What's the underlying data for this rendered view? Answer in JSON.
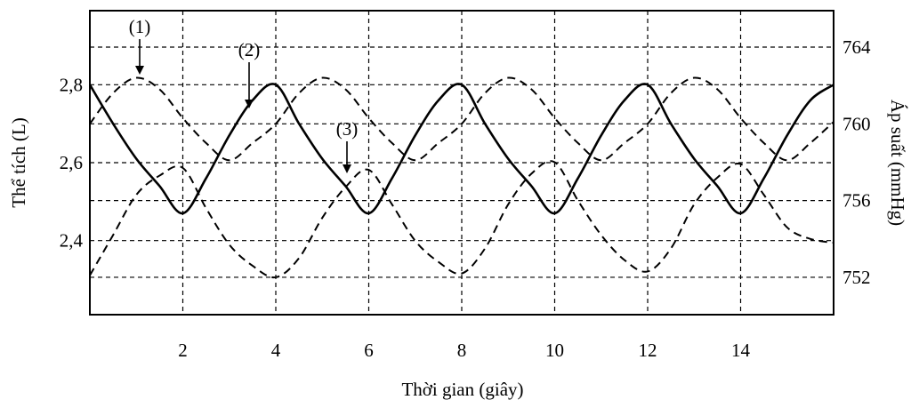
{
  "chart_data": {
    "type": "line",
    "x_label": "Thời gian (giây)",
    "y_label": "Thể tích (L)",
    "y2_label": "Áp suất (mmHg)",
    "x": [
      0,
      0.5,
      1,
      1.5,
      2,
      2.5,
      3,
      3.5,
      4,
      4.5,
      5,
      5.5,
      6,
      6.5,
      7,
      7.5,
      8,
      8.5,
      9,
      9.5,
      10,
      10.5,
      11,
      11.5,
      12,
      12.5,
      13,
      13.5,
      14,
      14.5,
      15,
      15.5,
      16
    ],
    "xlim": [
      0,
      16
    ],
    "xticks": [
      2,
      4,
      6,
      8,
      10,
      12,
      14
    ],
    "ylim": [
      2.21,
      2.99
    ],
    "yticks": [
      {
        "value": 2.4,
        "label": "2,4"
      },
      {
        "value": 2.6,
        "label": "2,6"
      },
      {
        "value": 2.8,
        "label": "2,8"
      }
    ],
    "y2lim": [
      750.05,
      765.9
    ],
    "y2ticks": [
      752,
      756,
      760,
      764
    ],
    "grid": true,
    "series": [
      {
        "name": "(1)",
        "color": "#000000",
        "dash": "9 6",
        "axis": "y2",
        "values": [
          760.0,
          761.6,
          762.4,
          761.8,
          760.3,
          759.0,
          758.1,
          759.0,
          760.0,
          761.6,
          762.4,
          761.8,
          760.3,
          759.0,
          758.1,
          759.0,
          760.0,
          761.6,
          762.4,
          761.8,
          760.3,
          759.0,
          758.1,
          759.0,
          760.0,
          761.6,
          762.4,
          761.8,
          760.3,
          759.0,
          758.1,
          759.0,
          760.1
        ]
      },
      {
        "name": "(2)",
        "color": "#000000",
        "dash": "none",
        "values": [
          2.8,
          2.7,
          2.61,
          2.54,
          2.47,
          2.56,
          2.67,
          2.76,
          2.8,
          2.7,
          2.61,
          2.54,
          2.47,
          2.56,
          2.67,
          2.76,
          2.8,
          2.7,
          2.61,
          2.54,
          2.47,
          2.56,
          2.67,
          2.76,
          2.8,
          2.7,
          2.61,
          2.54,
          2.47,
          2.56,
          2.67,
          2.76,
          2.8
        ]
      },
      {
        "name": "(3)",
        "color": "#000000",
        "dash": "9 6",
        "axis": "y2",
        "values": [
          752.1,
          754.2,
          756.3,
          757.3,
          757.7,
          755.6,
          753.7,
          752.6,
          752.0,
          753.0,
          755.1,
          756.7,
          757.6,
          755.8,
          753.9,
          752.8,
          752.2,
          753.5,
          755.8,
          757.4,
          758.0,
          756.0,
          754.2,
          752.9,
          752.3,
          753.5,
          755.8,
          757.2,
          757.9,
          756.3,
          754.6,
          754.0,
          753.8
        ]
      }
    ]
  }
}
